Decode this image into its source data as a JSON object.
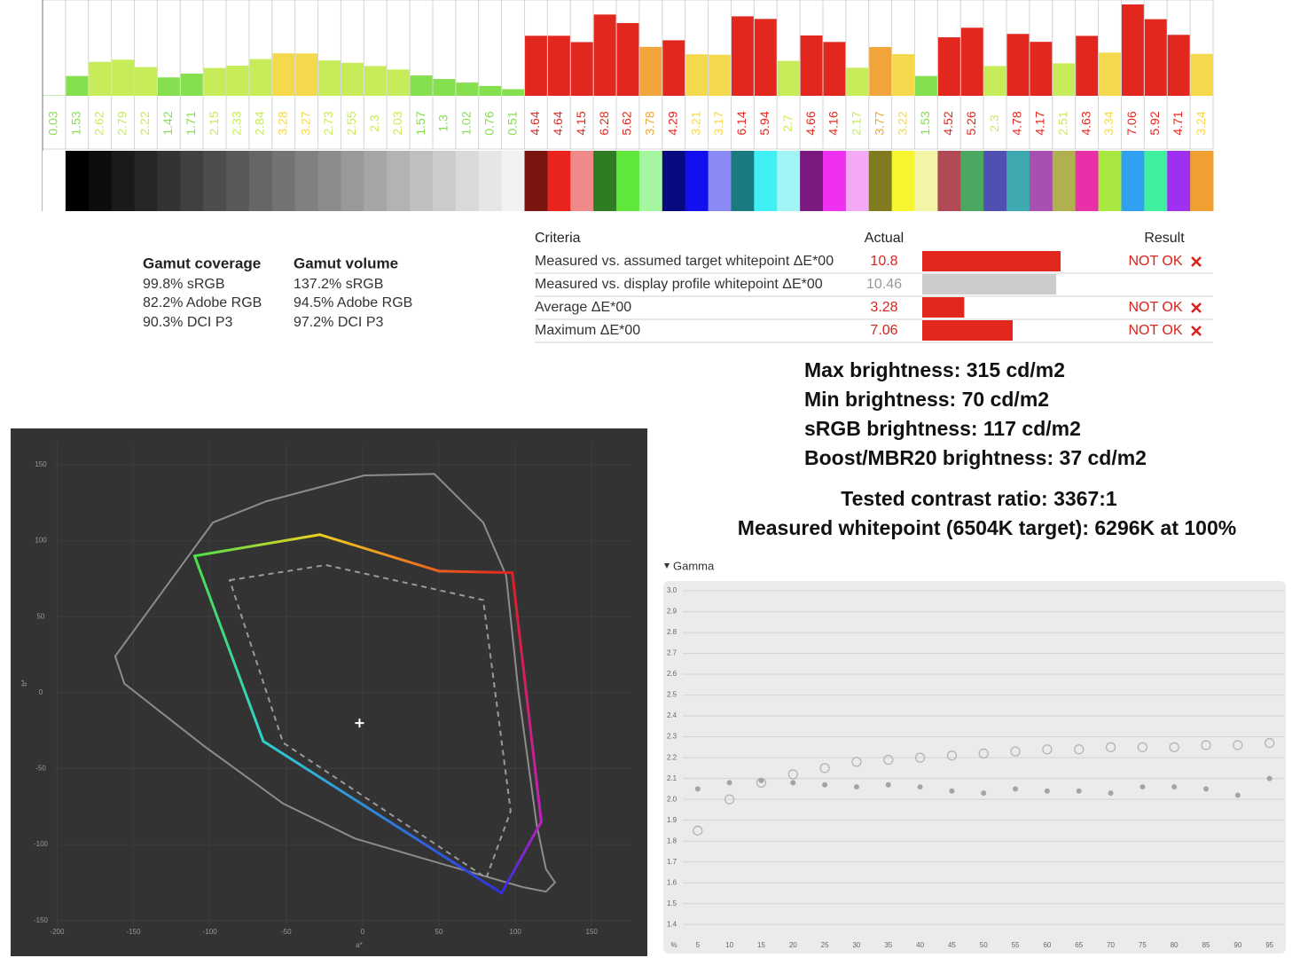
{
  "chart_data": [
    {
      "type": "bar",
      "values": [
        0.03,
        1.53,
        2.62,
        2.79,
        2.22,
        1.42,
        1.71,
        2.15,
        2.33,
        2.84,
        3.28,
        3.27,
        2.73,
        2.55,
        2.3,
        2.03,
        1.57,
        1.3,
        1.02,
        0.76,
        0.51,
        4.64,
        4.64,
        4.15,
        6.28,
        5.62,
        3.78,
        4.29,
        3.21,
        3.17,
        6.14,
        5.94,
        2.7,
        4.66,
        4.16,
        2.17,
        3.77,
        3.22,
        1.53,
        4.52,
        5.26,
        2.3,
        4.78,
        4.17,
        2.51,
        4.63,
        3.34,
        7.06,
        5.92,
        4.71,
        3.24
      ],
      "colors": [
        "#86df4f",
        "#86df4f",
        "#c6ec59",
        "#c6ec59",
        "#c6ec59",
        "#86df4f",
        "#86df4f",
        "#c6ec59",
        "#c6ec59",
        "#c6ec59",
        "#f4d94c",
        "#f4d94c",
        "#c6ec59",
        "#c6ec59",
        "#c6ec59",
        "#c6ec59",
        "#86df4f",
        "#86df4f",
        "#86df4f",
        "#86df4f",
        "#86df4f",
        "#e2271f",
        "#e2271f",
        "#e2271f",
        "#e2271f",
        "#e2271f",
        "#f0a43a",
        "#e2271f",
        "#f4d94c",
        "#f4d94c",
        "#e2271f",
        "#e2271f",
        "#c6ec59",
        "#e2271f",
        "#e2271f",
        "#c6ec59",
        "#f0a43a",
        "#f4d94c",
        "#86df4f",
        "#e2271f",
        "#e2271f",
        "#c6ec59",
        "#e2271f",
        "#e2271f",
        "#c6ec59",
        "#e2271f",
        "#f4d94c",
        "#e2271f",
        "#e2271f",
        "#e2271f",
        "#f4d94c"
      ],
      "swatches": [
        "#ffffff",
        "#000000",
        "#0d0d0d",
        "#1a1a1a",
        "#262626",
        "#333333",
        "#404040",
        "#4d4d4d",
        "#595959",
        "#666666",
        "#737373",
        "#808080",
        "#8c8c8c",
        "#999999",
        "#a6a6a6",
        "#b3b3b3",
        "#bfbfbf",
        "#cccccc",
        "#d9d9d9",
        "#e6e6e6",
        "#f2f2f2",
        "#7a1410",
        "#e8241e",
        "#f08a8a",
        "#2e7d22",
        "#5ee83c",
        "#a6f5a0",
        "#0a0a80",
        "#1010f0",
        "#8a8af5",
        "#1a7a80",
        "#40f0f5",
        "#a0f5f5",
        "#7a1a80",
        "#f030f0",
        "#f5a8f5",
        "#807a20",
        "#f5f530",
        "#f5f5a8",
        "#b04a55",
        "#4aa860",
        "#5050b0",
        "#40a8b0",
        "#a850b0",
        "#b0b050",
        "#e830a8",
        "#a8e840",
        "#30a0f0",
        "#40f0a0",
        "#a030f0",
        "#f0a030"
      ]
    },
    {
      "type": "polygon",
      "xlabel": "a*",
      "ylabel": "b*",
      "xlim": [
        -220,
        176
      ],
      "ylim": [
        -163,
        164
      ],
      "xticks": [
        -200,
        -150,
        -100,
        -50,
        0,
        50,
        100,
        150
      ],
      "yticks": [
        -150,
        -100,
        -50,
        0,
        50,
        100,
        150
      ],
      "grid": true,
      "series": [
        {
          "color": "#8c8c8c",
          "x": [
            -162,
            -98,
            -63,
            1,
            47,
            79,
            94,
            102,
            114,
            120,
            126,
            120,
            105,
            53,
            -5,
            -52,
            -104,
            -156
          ],
          "y": [
            24,
            112,
            126,
            143,
            144,
            112,
            77,
            1,
            -87,
            -116,
            -125,
            -131,
            -128,
            -113,
            -96,
            -73,
            -35,
            6
          ]
        },
        {
          "colors": [
            "#4be04b",
            "#f0d020",
            "#e86020",
            "#e02020",
            "#c020c0",
            "#3030e0",
            "#30d0d0"
          ],
          "x": [
            -110,
            -28,
            50,
            98,
            117,
            91,
            -65
          ],
          "y": [
            90,
            104,
            80,
            79,
            -85,
            -132,
            -32
          ]
        },
        {
          "color": "#9a9a9a",
          "dashed": true,
          "x": [
            -87,
            -24,
            79,
            97,
            81,
            -52
          ],
          "y": [
            74,
            84,
            61,
            -78,
            -122,
            -33
          ]
        }
      ],
      "white_point": {
        "x": -2,
        "y": -20
      }
    },
    {
      "type": "scatter",
      "title": "Gamma",
      "xlabel": "%",
      "xlim": [
        0,
        97
      ],
      "ylim": [
        1.35,
        3.03
      ],
      "xticks": [
        5,
        10,
        15,
        20,
        25,
        30,
        35,
        40,
        45,
        50,
        55,
        60,
        65,
        70,
        75,
        80,
        85,
        90,
        95
      ],
      "yticks": [
        1.4,
        1.5,
        1.6,
        1.7,
        1.8,
        1.9,
        {
          "value": 2,
          "label": "2.0"
        },
        2.1,
        2.2,
        2.3,
        2.4,
        2.5,
        2.6,
        2.7,
        2.8,
        2.9,
        {
          "value": 3,
          "label": "3.0"
        }
      ],
      "grid": true,
      "x": [
        5,
        10,
        15,
        20,
        25,
        30,
        35,
        40,
        45,
        50,
        55,
        60,
        65,
        70,
        75,
        80,
        85,
        90,
        95
      ],
      "series": [
        {
          "color": "#b4b4b4",
          "marker": "open",
          "values": [
            1.85,
            2.0,
            2.08,
            2.12,
            2.15,
            2.18,
            2.19,
            2.2,
            2.21,
            2.22,
            2.23,
            2.24,
            2.24,
            2.25,
            2.25,
            2.25,
            2.26,
            2.26,
            2.27
          ]
        },
        {
          "color": "#a4a4a4",
          "marker": "dot",
          "values": [
            2.05,
            2.08,
            2.09,
            2.08,
            2.07,
            2.06,
            2.07,
            2.06,
            2.04,
            2.03,
            2.05,
            2.04,
            2.04,
            2.03,
            2.06,
            2.06,
            2.05,
            2.02,
            2.1
          ]
        }
      ]
    }
  ],
  "gamut": {
    "coverage": {
      "title": "Gamut coverage",
      "lines": [
        "99.8% sRGB",
        "82.2% Adobe RGB",
        "90.3% DCI P3"
      ]
    },
    "volume": {
      "title": "Gamut volume",
      "lines": [
        "137.2% sRGB",
        "94.5% Adobe RGB",
        "97.2% DCI P3"
      ]
    }
  },
  "criteria": {
    "header": [
      "Criteria",
      "Actual",
      "Result"
    ],
    "rows": [
      {
        "label": "Measured vs. assumed target whitepoint ΔE*00",
        "actual": 10.8,
        "result": "NOT OK",
        "color": "#e2271f"
      },
      {
        "label": "Measured vs. display profile whitepoint ΔE*00",
        "actual": 10.46,
        "color": "#cccccc"
      },
      {
        "label": "Average ΔE*00",
        "actual": 3.28,
        "result": "NOT OK",
        "color": "#e2271f"
      },
      {
        "label": "Maximum ΔE*00",
        "actual": 7.06,
        "result": "NOT OK",
        "color": "#e2271f"
      }
    ]
  },
  "stats": [
    "Max brightness: 315 cd/m2",
    "Min brightness: 70 cd/m2",
    "sRGB brightness: 117 cd/m2",
    "Boost/MBR20 brightness: 37 cd/m2",
    "Tested contrast ratio: 3367:1",
    "Measured whitepoint (6504K target): 6296K at 100%"
  ]
}
